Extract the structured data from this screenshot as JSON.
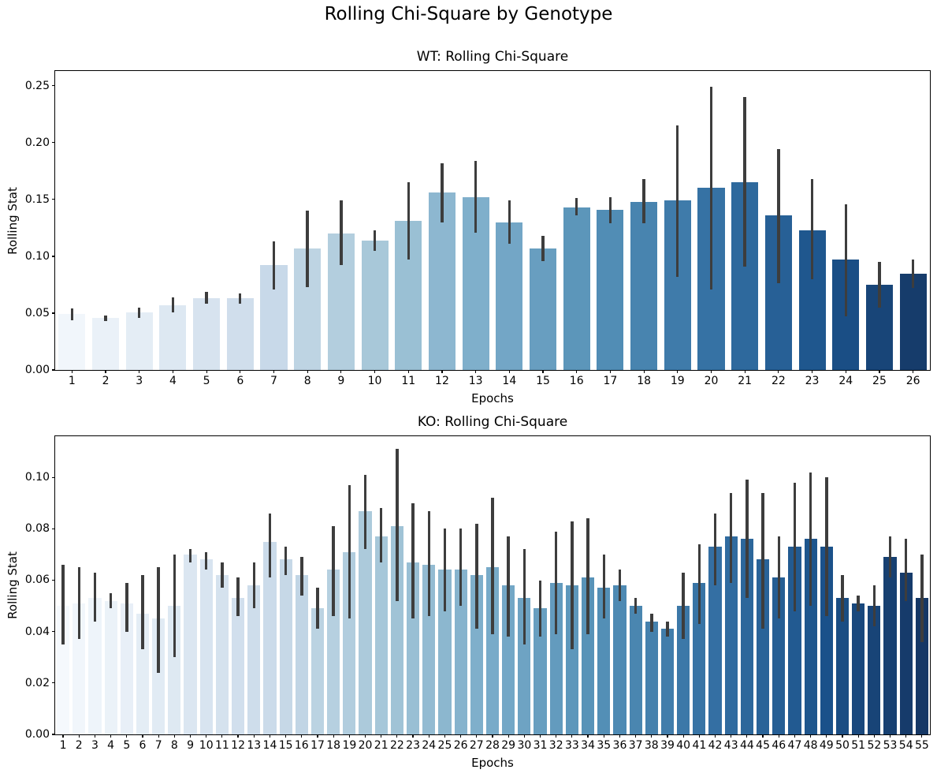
{
  "figure": {
    "title": "Rolling Chi-Square by Genotype"
  },
  "palette": {
    "colormap_name": "Blues",
    "blues_anchors": [
      "#f7fbff",
      "#deebf7",
      "#c6dbef",
      "#9ecae1",
      "#6baed6",
      "#4292c6",
      "#2171b5",
      "#08519c",
      "#08306b"
    ],
    "desaturation": 0.75,
    "first_bar_color": "#f2f6fb",
    "last_bar_color": "#163c6b",
    "error_bar_color": "#3d3d3d",
    "axis_color": "#000000",
    "background": "#ffffff"
  },
  "chart_data": [
    {
      "type": "bar",
      "title": "WT: Rolling Chi-Square",
      "xlabel": "Epochs",
      "ylabel": "Rolling Stat",
      "legend": null,
      "grid": false,
      "ylim": [
        0,
        0.263
      ],
      "yticks": [
        0.0,
        0.05,
        0.1,
        0.15,
        0.2,
        0.25
      ],
      "ytick_labels": [
        "0.00",
        "0.05",
        "0.10",
        "0.15",
        "0.20",
        "0.25"
      ],
      "categories": [
        "1",
        "2",
        "3",
        "4",
        "5",
        "6",
        "7",
        "8",
        "9",
        "10",
        "11",
        "12",
        "13",
        "14",
        "15",
        "16",
        "17",
        "18",
        "19",
        "20",
        "21",
        "22",
        "23",
        "24",
        "25",
        "26"
      ],
      "values": [
        0.049,
        0.046,
        0.051,
        0.057,
        0.063,
        0.063,
        0.092,
        0.107,
        0.12,
        0.114,
        0.131,
        0.156,
        0.152,
        0.13,
        0.107,
        0.143,
        0.141,
        0.148,
        0.149,
        0.16,
        0.165,
        0.136,
        0.123,
        0.097,
        0.075,
        0.085
      ],
      "error_low": [
        0.044,
        0.043,
        0.046,
        0.051,
        0.058,
        0.058,
        0.071,
        0.073,
        0.092,
        0.105,
        0.097,
        0.13,
        0.121,
        0.111,
        0.096,
        0.136,
        0.129,
        0.129,
        0.082,
        0.071,
        0.091,
        0.076,
        0.08,
        0.047,
        0.055,
        0.072
      ],
      "error_high": [
        0.054,
        0.048,
        0.055,
        0.064,
        0.069,
        0.067,
        0.113,
        0.14,
        0.149,
        0.123,
        0.165,
        0.182,
        0.184,
        0.149,
        0.118,
        0.151,
        0.152,
        0.168,
        0.215,
        0.249,
        0.24,
        0.194,
        0.168,
        0.146,
        0.095,
        0.097
      ]
    },
    {
      "type": "bar",
      "title": "KO: Rolling Chi-Square",
      "xlabel": "Epochs",
      "ylabel": "Rolling Stat",
      "legend": null,
      "grid": false,
      "ylim": [
        0,
        0.116
      ],
      "yticks": [
        0.0,
        0.02,
        0.04,
        0.06,
        0.08,
        0.1
      ],
      "ytick_labels": [
        "0.00",
        "0.02",
        "0.04",
        "0.06",
        "0.08",
        "0.10"
      ],
      "categories": [
        "1",
        "2",
        "3",
        "4",
        "5",
        "6",
        "7",
        "8",
        "9",
        "10",
        "11",
        "12",
        "13",
        "14",
        "15",
        "16",
        "17",
        "18",
        "19",
        "20",
        "21",
        "22",
        "23",
        "24",
        "25",
        "26",
        "27",
        "28",
        "29",
        "30",
        "31",
        "32",
        "33",
        "34",
        "35",
        "36",
        "37",
        "38",
        "39",
        "40",
        "41",
        "42",
        "43",
        "44",
        "45",
        "46",
        "47",
        "48",
        "49",
        "50",
        "51",
        "52",
        "53",
        "54",
        "55"
      ],
      "values": [
        0.05,
        0.051,
        0.053,
        0.052,
        0.051,
        0.047,
        0.045,
        0.05,
        0.07,
        0.068,
        0.062,
        0.053,
        0.058,
        0.075,
        0.068,
        0.062,
        0.049,
        0.064,
        0.071,
        0.087,
        0.077,
        0.081,
        0.067,
        0.066,
        0.064,
        0.064,
        0.062,
        0.065,
        0.058,
        0.053,
        0.049,
        0.059,
        0.058,
        0.061,
        0.057,
        0.058,
        0.05,
        0.044,
        0.041,
        0.05,
        0.059,
        0.073,
        0.077,
        0.076,
        0.068,
        0.061,
        0.073,
        0.076,
        0.073,
        0.053,
        0.051,
        0.05,
        0.069,
        0.063,
        0.053
      ],
      "error_low": [
        0.035,
        0.037,
        0.044,
        0.049,
        0.04,
        0.033,
        0.024,
        0.03,
        0.067,
        0.064,
        0.057,
        0.046,
        0.049,
        0.061,
        0.062,
        0.054,
        0.041,
        0.046,
        0.045,
        0.072,
        0.067,
        0.052,
        0.045,
        0.046,
        0.048,
        0.05,
        0.041,
        0.039,
        0.038,
        0.035,
        0.038,
        0.039,
        0.033,
        0.039,
        0.045,
        0.052,
        0.047,
        0.04,
        0.038,
        0.037,
        0.043,
        0.058,
        0.059,
        0.053,
        0.041,
        0.045,
        0.048,
        0.05,
        0.046,
        0.044,
        0.048,
        0.042,
        0.061,
        0.052,
        0.036
      ],
      "error_high": [
        0.066,
        0.065,
        0.063,
        0.055,
        0.059,
        0.062,
        0.065,
        0.07,
        0.072,
        0.071,
        0.067,
        0.061,
        0.067,
        0.086,
        0.073,
        0.069,
        0.057,
        0.081,
        0.097,
        0.101,
        0.088,
        0.111,
        0.09,
        0.087,
        0.08,
        0.08,
        0.082,
        0.092,
        0.077,
        0.072,
        0.06,
        0.079,
        0.083,
        0.084,
        0.07,
        0.064,
        0.053,
        0.047,
        0.044,
        0.063,
        0.074,
        0.086,
        0.094,
        0.099,
        0.094,
        0.077,
        0.098,
        0.102,
        0.1,
        0.062,
        0.054,
        0.058,
        0.077,
        0.076,
        0.07
      ]
    }
  ]
}
